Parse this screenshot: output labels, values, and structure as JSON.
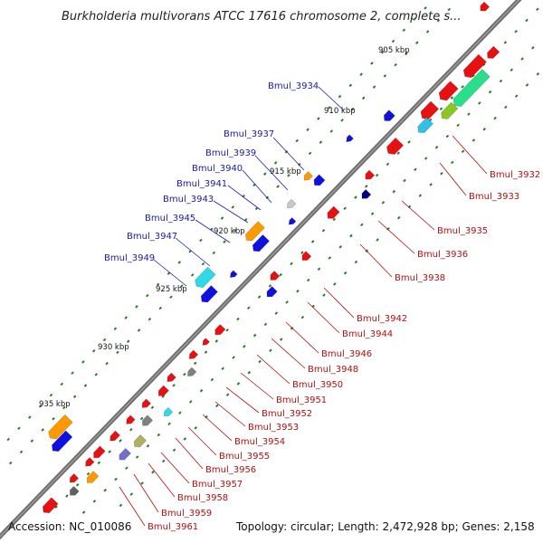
{
  "header": {
    "title": "Burkholderia multivorans ATCC 17616 chromosome 2, complete s..."
  },
  "footer": {
    "accession": "Accession: NC_010086",
    "topology": "Topology: circular; Length: 2,472,928 bp; Genes: 2,158"
  },
  "ticks": [
    "905 kbp",
    "910 kbp",
    "915 kbp",
    "920 kbp",
    "925 kbp",
    "930 kbp",
    "935 kbp"
  ],
  "labels_forward": [
    "Bmul_3934",
    "Bmul_3937",
    "Bmul_3939",
    "Bmul_3940",
    "Bmul_3941",
    "Bmul_3943",
    "Bmul_3945",
    "Bmul_3947",
    "Bmul_3949"
  ],
  "labels_reverse": [
    "Bmul_3932",
    "Bmul_3933",
    "Bmul_3935",
    "Bmul_3936",
    "Bmul_3938",
    "Bmul_3942",
    "Bmul_3944",
    "Bmul_3946",
    "Bmul_3948",
    "Bmul_3950",
    "Bmul_3951",
    "Bmul_3952",
    "Bmul_3953",
    "Bmul_3954",
    "Bmul_3955",
    "Bmul_3956",
    "Bmul_3957",
    "Bmul_3958",
    "Bmul_3959",
    "Bmul_3961"
  ],
  "colors": {
    "backbone": "#6e6e6e",
    "forward_gene": "#1010e0",
    "reverse_gene": "#e81010",
    "forward_label": "#1a1aa6",
    "reverse_label": "#b01010",
    "tick_mark": "#2a7a2a"
  }
}
